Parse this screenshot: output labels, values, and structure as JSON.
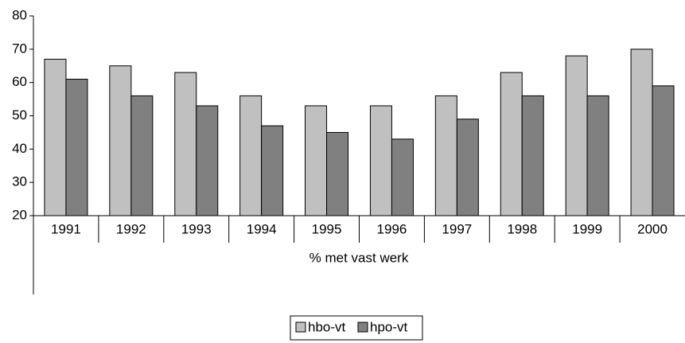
{
  "chart_data": {
    "type": "bar",
    "categories": [
      "1991",
      "1992",
      "1993",
      "1994",
      "1995",
      "1996",
      "1997",
      "1998",
      "1999",
      "2000"
    ],
    "series": [
      {
        "name": "hbo-vt",
        "color": "#c0c0c0",
        "values": [
          67,
          65,
          63,
          56,
          53,
          53,
          56,
          63,
          68,
          70
        ]
      },
      {
        "name": "hpo-vt",
        "color": "#808080",
        "values": [
          61,
          56,
          53,
          47,
          45,
          43,
          49,
          56,
          56,
          59
        ]
      }
    ],
    "x_label": "% met vast werk",
    "ylim": [
      20,
      80
    ],
    "yticks": [
      20,
      30,
      40,
      50,
      60,
      70,
      80
    ],
    "legend": "bottom"
  }
}
